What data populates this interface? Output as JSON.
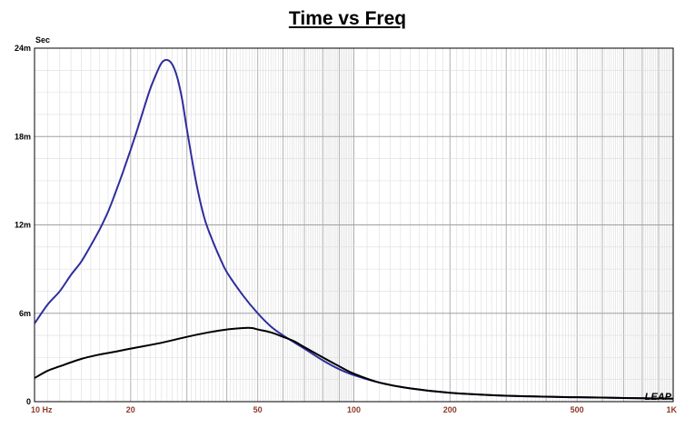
{
  "chart_data": {
    "type": "line",
    "title": "Time vs Freq",
    "ylabel": "Sec",
    "xlabel": "",
    "x_scale": "log",
    "xlim": [
      10,
      1000
    ],
    "ylim": [
      0,
      0.024
    ],
    "grid": true,
    "x_ticks": [
      {
        "value": 10,
        "label": "10 Hz"
      },
      {
        "value": 20,
        "label": "20"
      },
      {
        "value": 50,
        "label": "50"
      },
      {
        "value": 100,
        "label": "100"
      },
      {
        "value": 200,
        "label": "200"
      },
      {
        "value": 500,
        "label": "500"
      },
      {
        "value": 1000,
        "label": "1K"
      }
    ],
    "y_ticks": [
      {
        "value": 0,
        "label": "0"
      },
      {
        "value": 0.006,
        "label": "6m"
      },
      {
        "value": 0.012,
        "label": "12m"
      },
      {
        "value": 0.018,
        "label": "18m"
      },
      {
        "value": 0.024,
        "label": "24m"
      }
    ],
    "series": [
      {
        "color": "#2e2e9c",
        "x": [
          10,
          11,
          12,
          13,
          14,
          15,
          16,
          17,
          18,
          19,
          20,
          21,
          22,
          23,
          24,
          25,
          26,
          27,
          28,
          29,
          30,
          32,
          34,
          36,
          38,
          40,
          45,
          50,
          55,
          60,
          70,
          80,
          90,
          100,
          120,
          150,
          200,
          300,
          500,
          700,
          1000
        ],
        "y": [
          0.0053,
          0.0066,
          0.0075,
          0.0086,
          0.0095,
          0.0106,
          0.0117,
          0.0129,
          0.0143,
          0.0157,
          0.0171,
          0.0185,
          0.0199,
          0.0212,
          0.0222,
          0.023,
          0.0232,
          0.0229,
          0.022,
          0.0205,
          0.0185,
          0.015,
          0.0125,
          0.011,
          0.0098,
          0.0088,
          0.0072,
          0.006,
          0.0051,
          0.0045,
          0.0036,
          0.0028,
          0.0022,
          0.0018,
          0.0013,
          0.0009,
          0.0006,
          0.0004,
          0.0003,
          0.00025,
          0.0002
        ]
      },
      {
        "color": "#000000",
        "x": [
          10,
          11,
          12,
          14,
          16,
          18,
          20,
          25,
          30,
          35,
          40,
          45,
          48,
          50,
          55,
          60,
          65,
          70,
          80,
          90,
          100,
          120,
          150,
          200,
          300,
          500,
          700,
          1000
        ],
        "y": [
          0.0016,
          0.0021,
          0.0024,
          0.0029,
          0.0032,
          0.0034,
          0.0036,
          0.004,
          0.0044,
          0.0047,
          0.0049,
          0.005,
          0.005,
          0.0049,
          0.0047,
          0.0044,
          0.0041,
          0.0037,
          0.003,
          0.0024,
          0.0019,
          0.0013,
          0.0009,
          0.0006,
          0.0004,
          0.0003,
          0.00025,
          0.0002
        ]
      }
    ],
    "logo_text": "LEAP"
  }
}
